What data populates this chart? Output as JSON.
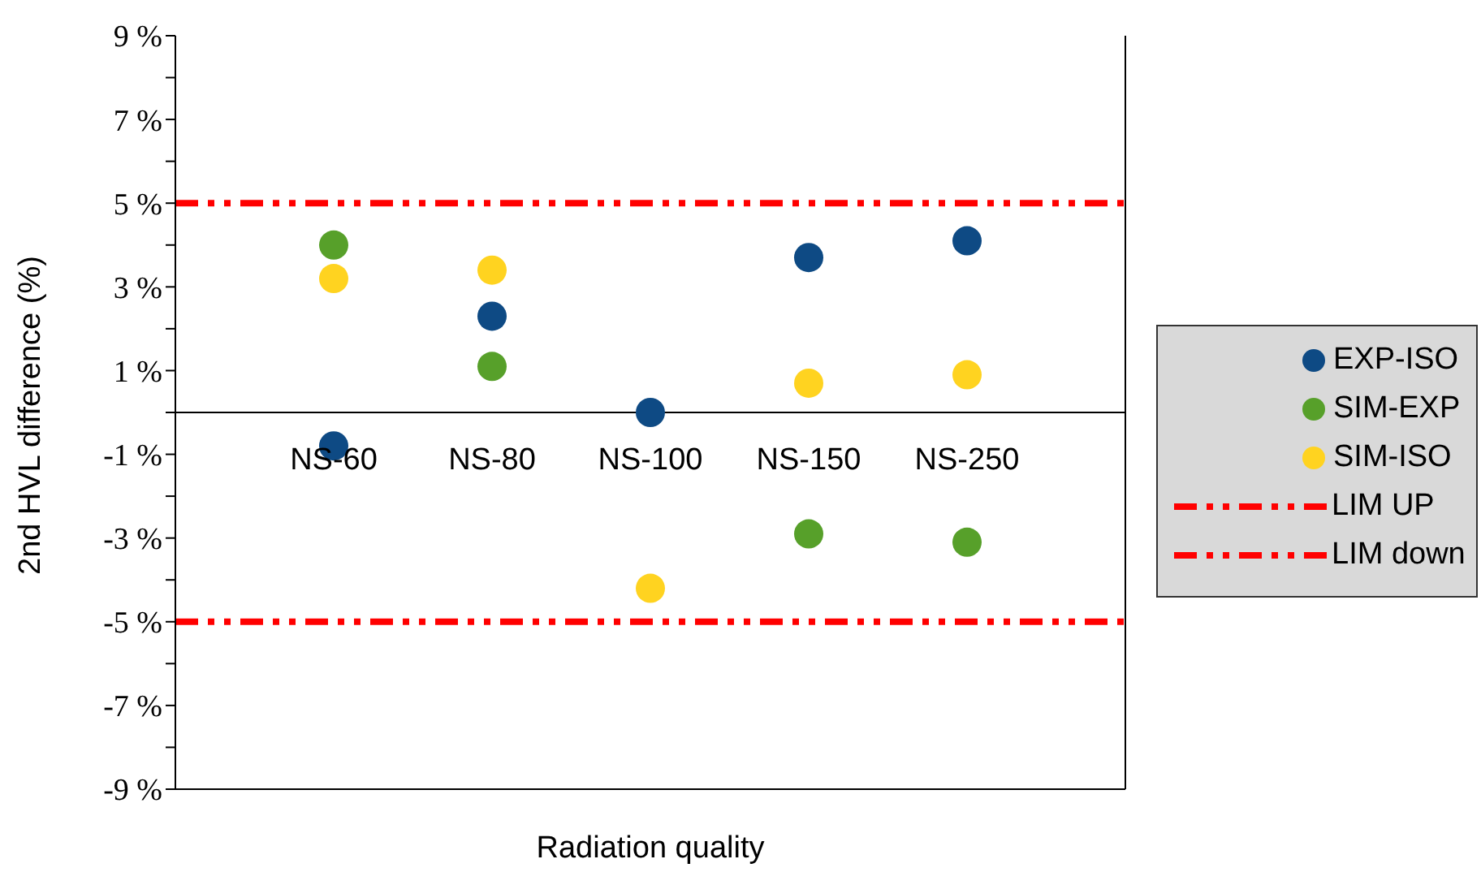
{
  "chart_data": {
    "type": "scatter",
    "xlabel": "Radiation quality",
    "ylabel": "2nd HVL difference (%)",
    "categories": [
      "NS-60",
      "NS-80",
      "NS-100",
      "NS-150",
      "NS-250"
    ],
    "series": [
      {
        "name": "EXP-ISO",
        "color": "#0e4a84",
        "values": [
          -0.8,
          2.3,
          0.0,
          3.7,
          4.1
        ]
      },
      {
        "name": "SIM-EXP",
        "color": "#57a02a",
        "values": [
          4.0,
          1.1,
          null,
          -2.9,
          -3.1
        ]
      },
      {
        "name": "SIM-ISO",
        "color": "#ffd320",
        "values": [
          3.2,
          3.4,
          -4.2,
          0.7,
          0.9
        ]
      }
    ],
    "ylim": [
      -9,
      9
    ],
    "yticks": [
      {
        "value": -9,
        "label": "-9 %"
      },
      {
        "value": -8,
        "label": null
      },
      {
        "value": -7,
        "label": "-7 %"
      },
      {
        "value": -6,
        "label": null
      },
      {
        "value": -5,
        "label": "-5 %"
      },
      {
        "value": -4,
        "label": null
      },
      {
        "value": -3,
        "label": "-3 %"
      },
      {
        "value": -2,
        "label": null
      },
      {
        "value": -1,
        "label": "-1 %"
      },
      {
        "value": 0,
        "label": null
      },
      {
        "value": 1,
        "label": "1 %"
      },
      {
        "value": 2,
        "label": null
      },
      {
        "value": 3,
        "label": "3 %"
      },
      {
        "value": 4,
        "label": null
      },
      {
        "value": 5,
        "label": "5 %"
      },
      {
        "value": 6,
        "label": null
      },
      {
        "value": 7,
        "label": "7 %"
      },
      {
        "value": 8,
        "label": null
      },
      {
        "value": 9,
        "label": "9 %"
      }
    ],
    "ref_lines": [
      {
        "axis": "y",
        "value": 5,
        "label": "LIM UP",
        "color": "#ff0000",
        "line_style": "dashed"
      },
      {
        "axis": "y",
        "value": -5,
        "label": "LIM down",
        "color": "#ff0000",
        "line_style": "dashed"
      }
    ],
    "marker": "circle",
    "legend": "right"
  }
}
